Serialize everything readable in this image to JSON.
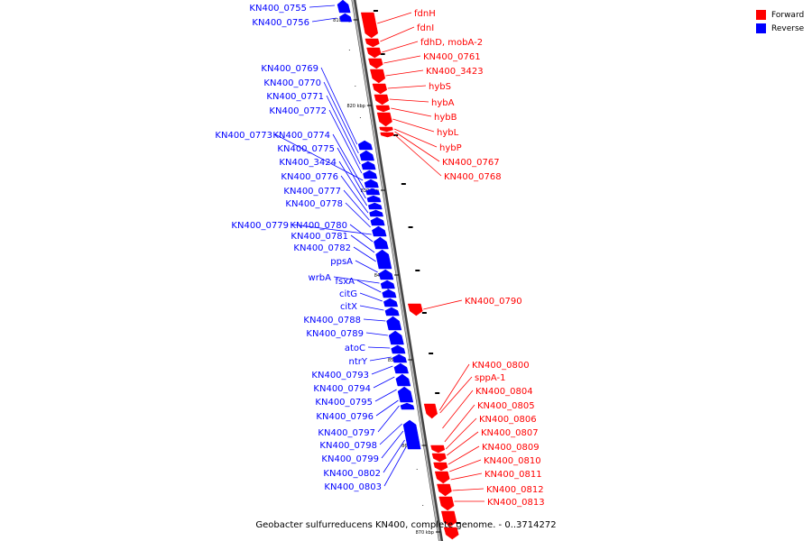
{
  "colors": {
    "forward": "#ff0000",
    "reverse": "#0000ff",
    "backbone": "#888888"
  },
  "legend": [
    {
      "label": "Forward",
      "color": "#ff0000"
    },
    {
      "label": "Reverse",
      "color": "#0000ff"
    }
  ],
  "footer": {
    "title": "Geobacter sulfurreducens KN400, complete genome. - 0..3714272"
  },
  "ticks": [
    "810 kbp",
    "820 kbp",
    "830 kbp",
    "840 kbp",
    "850 kbp",
    "860 kbp",
    "870 kbp"
  ],
  "forward_genes": [
    "fdnH",
    "fdnI",
    "fdhD, mobA-2",
    "KN400_0761",
    "KN400_3423",
    "hybS",
    "hybA",
    "hybB",
    "hybL",
    "hybP",
    "KN400_0767",
    "KN400_0768",
    "KN400_0790",
    "KN400_0800",
    "sppA-1",
    "KN400_0804",
    "KN400_0805",
    "KN400_0806",
    "KN400_0807",
    "KN400_0809",
    "KN400_0810",
    "KN400_0811",
    "KN400_0812",
    "KN400_0813"
  ],
  "reverse_genes": [
    "KN400_0755",
    "KN400_0756",
    "KN400_0769",
    "KN400_0770",
    "KN400_0771",
    "KN400_0772",
    "KN400_0773",
    "KN400_0774",
    "KN400_0775",
    "KN400_3424",
    "KN400_0776",
    "KN400_0777",
    "KN400_0778",
    "KN400_0779",
    "KN400_0780",
    "KN400_0781",
    "KN400_0782",
    "ppsA",
    "wrbA",
    "fsxA",
    "citG",
    "citX",
    "KN400_0788",
    "KN400_0789",
    "atoC",
    "ntrY",
    "KN400_0793",
    "KN400_0794",
    "KN400_0795",
    "KN400_0796",
    "KN400_0797",
    "KN400_0798",
    "KN400_0799",
    "KN400_0802",
    "KN400_0803"
  ]
}
